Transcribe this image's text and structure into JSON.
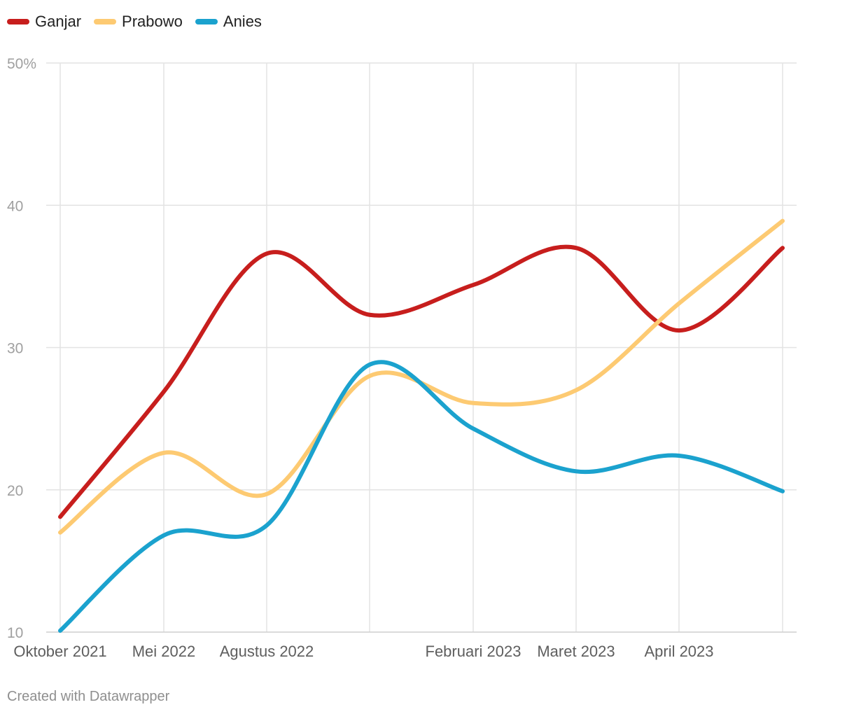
{
  "chart_data": {
    "type": "line",
    "x": [
      "Oktober 2021",
      "Mei 2022",
      "Agustus 2022",
      "",
      "Februari 2023",
      "Maret 2023",
      "April 2023",
      ""
    ],
    "x_tick_labels": [
      "Oktober 2021",
      "Mei 2022",
      "Agustus 2022",
      "",
      "Februari 2023",
      "Maret 2023",
      "April 2023",
      ""
    ],
    "y_ticks": [
      "10",
      "20",
      "30",
      "40",
      "50%"
    ],
    "ylim": [
      10,
      50
    ],
    "grid": true,
    "legend_position": "top-left",
    "series": [
      {
        "name": "Ganjar",
        "color": "#c71e1d",
        "values": [
          18.1,
          26.9,
          36.6,
          32.3,
          34.4,
          37.0,
          31.2,
          37.0
        ]
      },
      {
        "name": "Prabowo",
        "color": "#fdca72",
        "values": [
          17.0,
          22.6,
          19.7,
          28.0,
          26.1,
          27.0,
          33.1,
          38.9
        ]
      },
      {
        "name": "Anies",
        "color": "#1ba2ce",
        "values": [
          10.1,
          16.8,
          17.5,
          28.8,
          24.3,
          21.3,
          22.4,
          19.9
        ]
      }
    ]
  },
  "footer": {
    "credit": "Created with Datawrapper"
  }
}
